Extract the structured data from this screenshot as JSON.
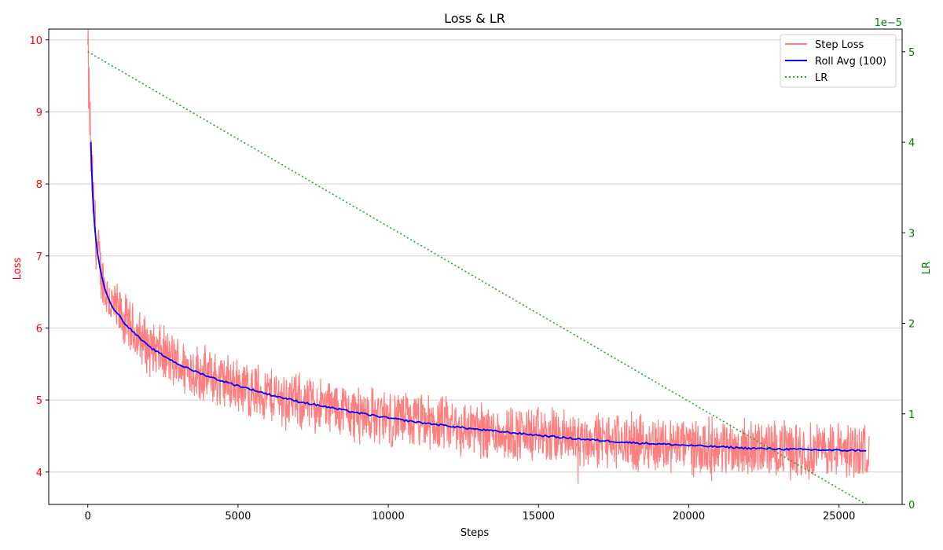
{
  "chart_data": {
    "type": "line",
    "title": "Loss & LR",
    "xlabel": "Steps",
    "ylabel_left": "Loss",
    "ylabel_right": "LR",
    "right_axis_multiplier": "1e−5",
    "xlim": [
      -1300,
      27100
    ],
    "ylim_left": [
      3.55,
      10.15
    ],
    "ylim_right": [
      0,
      5.25
    ],
    "x_ticks": [
      0,
      5000,
      10000,
      15000,
      20000,
      25000
    ],
    "x_tick_labels": [
      "0",
      "5000",
      "10000",
      "15000",
      "20000",
      "25000"
    ],
    "y_left_ticks": [
      4,
      5,
      6,
      7,
      8,
      9,
      10
    ],
    "y_left_tick_labels": [
      "4",
      "5",
      "6",
      "7",
      "8",
      "9",
      "10"
    ],
    "y_right_ticks": [
      0,
      1,
      2,
      3,
      4,
      5
    ],
    "y_right_tick_labels": [
      "0",
      "1",
      "2",
      "3",
      "4",
      "5"
    ],
    "grid": "horizontal",
    "legend_position": "top-right",
    "colors": {
      "step_loss": "#ff7f7f",
      "roll_avg": "#0000ff",
      "lr": "#2ca02c",
      "left_axis": "#ff0000",
      "right_axis": "#008000"
    },
    "series": [
      {
        "name": "Step Loss",
        "axis": "left",
        "style": "solid",
        "noise_amplitude": 0.45,
        "x": [
          0,
          100,
          200,
          300,
          400,
          500,
          700,
          1000,
          1500,
          2000,
          3000,
          4000,
          5000,
          6000,
          7000,
          8000,
          9000,
          10000,
          12000,
          14000,
          16000,
          18000,
          20000,
          22000,
          24000,
          26000
        ],
        "values": [
          9.8,
          8.4,
          7.6,
          7.1,
          6.85,
          6.65,
          6.4,
          6.2,
          5.95,
          5.75,
          5.5,
          5.33,
          5.2,
          5.08,
          4.98,
          4.9,
          4.82,
          4.75,
          4.64,
          4.55,
          4.47,
          4.41,
          4.37,
          4.33,
          4.31,
          4.3
        ]
      },
      {
        "name": "Roll Avg (100)",
        "axis": "left",
        "style": "solid",
        "x": [
          100,
          150,
          200,
          300,
          400,
          500,
          600,
          800,
          1000,
          1200,
          1500,
          2000,
          2500,
          3000,
          3500,
          4000,
          4500,
          5000,
          6000,
          7000,
          8000,
          9000,
          10000,
          11000,
          12000,
          13000,
          14000,
          15000,
          16000,
          17000,
          18000,
          19000,
          20000,
          21000,
          22000,
          23000,
          24000,
          25000,
          25900
        ],
        "values": [
          8.58,
          7.95,
          7.55,
          7.1,
          6.85,
          6.65,
          6.5,
          6.3,
          6.2,
          6.08,
          5.95,
          5.75,
          5.62,
          5.5,
          5.41,
          5.33,
          5.26,
          5.2,
          5.08,
          4.98,
          4.9,
          4.82,
          4.75,
          4.69,
          4.64,
          4.59,
          4.55,
          4.51,
          4.47,
          4.44,
          4.41,
          4.39,
          4.37,
          4.35,
          4.33,
          4.32,
          4.31,
          4.3,
          4.3
        ]
      },
      {
        "name": "LR",
        "axis": "right",
        "style": "dotted",
        "x": [
          0,
          25900
        ],
        "values": [
          5.0,
          0.0
        ]
      }
    ]
  }
}
